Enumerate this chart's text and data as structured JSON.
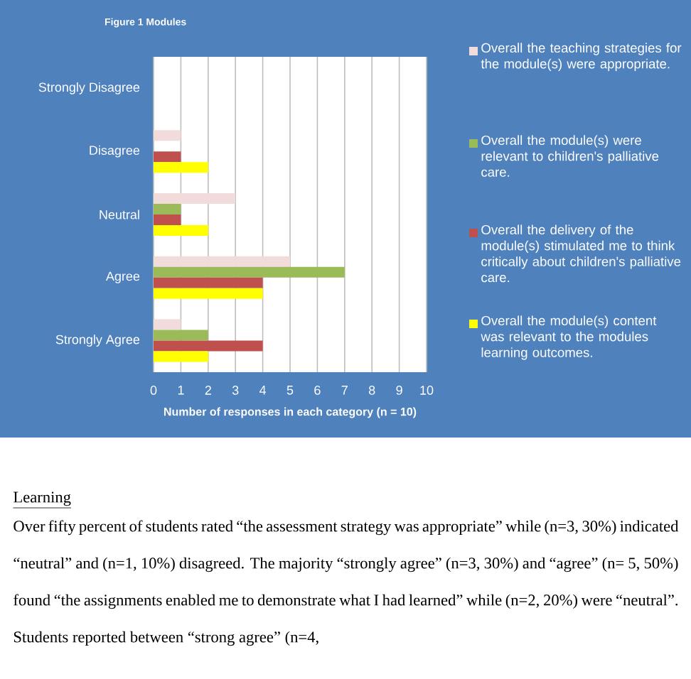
{
  "chart_data": {
    "type": "bar",
    "orientation": "horizontal",
    "title": "Figure  1  Modules",
    "xlabel": "Number of responses in each category  (n = 10)",
    "categories": [
      "Strongly Disagree",
      "Disagree",
      "Neutral",
      "Agree",
      "Strongly Agree"
    ],
    "series": [
      {
        "name": "Overall the teaching strategies for the module(s) were appropriate.",
        "color": "#f2dcdb",
        "values": [
          0,
          1,
          3,
          5,
          1
        ]
      },
      {
        "name": "Overall the module(s) were relevant to children's palliative care.",
        "color": "#9bbb59",
        "values": [
          0,
          0,
          1,
          7,
          2
        ]
      },
      {
        "name": "Overall the delivery of the module(s) stimulated me to think critically about children's palliative care.",
        "color": "#c0504d",
        "values": [
          0,
          1,
          1,
          4,
          4
        ]
      },
      {
        "name": "Overall the module(s) content was relevant to the modules learning outcomes.",
        "color": "#ffff00",
        "values": [
          0,
          2,
          2,
          4,
          2
        ]
      }
    ],
    "xlim": [
      0,
      10
    ],
    "xticks": [
      0,
      1,
      2,
      3,
      4,
      5,
      6,
      7,
      8,
      9,
      10
    ],
    "grid": "x",
    "legend": "right",
    "annotations": [
      "Learning",
      "Over fifty percent of students rated “the assessment strategy was appropriate” while (n=3, 30%) indicated “neutral” and (n=1, 10%) disagreed. The majority “strongly agree” (n=3, 30%) and “agree” (n= 5, 50%) found “the assignments enabled me to demonstrate what I had learned” while (n=2, 20%) were “neutral”. Students reported between “strong agree” (n=4,"
    ]
  }
}
